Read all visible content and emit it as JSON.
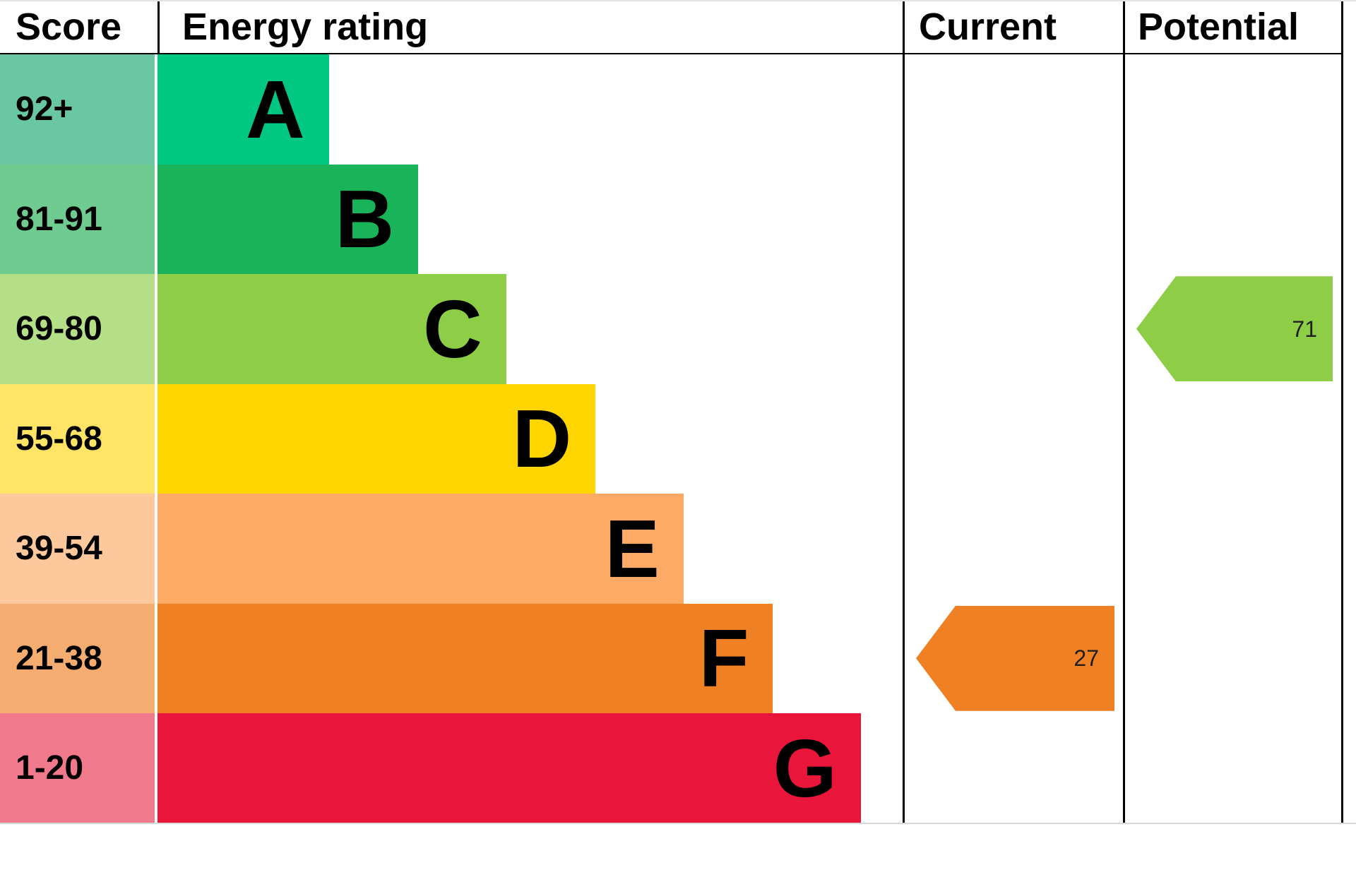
{
  "chart_data": {
    "type": "bar",
    "chart_kind": "epc-energy-rating",
    "title": "Energy rating",
    "legend_position": "none",
    "grid": false,
    "headers": {
      "score": "Score",
      "rating": "Energy rating",
      "current": "Current",
      "potential": "Potential"
    },
    "bands": [
      {
        "letter": "A",
        "score_range": "92+",
        "color": "#00c781",
        "tint": "#69c8a3",
        "bar_width_pct": 23.0
      },
      {
        "letter": "B",
        "score_range": "81-91",
        "color": "#19b459",
        "tint": "#6fcb90",
        "bar_width_pct": 35.0
      },
      {
        "letter": "C",
        "score_range": "69-80",
        "color": "#8dce46",
        "tint": "#b5df87",
        "bar_width_pct": 46.8
      },
      {
        "letter": "D",
        "score_range": "55-68",
        "color": "#ffd500",
        "tint": "#ffe466",
        "bar_width_pct": 58.8
      },
      {
        "letter": "E",
        "score_range": "39-54",
        "color": "#fcaa65",
        "tint": "#fdc89b",
        "bar_width_pct": 70.6
      },
      {
        "letter": "F",
        "score_range": "21-38",
        "color": "#ef8023",
        "tint": "#f4ac70",
        "bar_width_pct": 82.6
      },
      {
        "letter": "G",
        "score_range": "1-20",
        "color": "#e9153b",
        "tint": "#f1798c",
        "bar_width_pct": 94.4
      }
    ],
    "markers": {
      "current": {
        "value": 27,
        "band": "F",
        "color": "#ef8023"
      },
      "potential": {
        "value": 71,
        "band": "C",
        "color": "#8dce46"
      }
    }
  }
}
